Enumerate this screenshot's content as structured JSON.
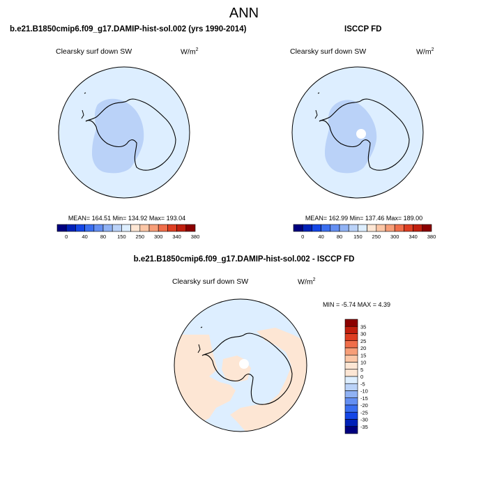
{
  "figure": {
    "title": "ANN"
  },
  "panels": {
    "model": {
      "title": "b.e21.B1850cmip6.f09_g17.DAMIP-hist-sol.002 (yrs 1990-2014)",
      "variable": "Clearsky surf down SW",
      "units": "W/m",
      "units_exp": "2",
      "stats": {
        "mean": "164.51",
        "min": "134.92",
        "max": "193.04"
      },
      "stats_text": "MEAN= 164.51  Min= 134.92  Max= 193.04"
    },
    "obs": {
      "title": "ISCCP FD",
      "variable": "Clearsky surf down SW",
      "units": "W/m",
      "units_exp": "2",
      "stats": {
        "mean": "162.99",
        "min": "137.46",
        "max": "189.00"
      },
      "stats_text": "MEAN= 162.99  Min= 137.46  Max= 189.00"
    },
    "diff": {
      "title": "b.e21.B1850cmip6.f09_g17.DAMIP-hist-sol.002 - ISCCP FD",
      "variable": "Clearsky surf down SW",
      "units": "W/m",
      "units_exp": "2",
      "stats": {
        "min": "-5.74",
        "max": "4.39"
      },
      "stats_text": "MIN =  -5.74 MAX =   4.39"
    }
  },
  "chart_data": [
    {
      "type": "heatmap",
      "name": "model",
      "projection": "south-polar-stereographic",
      "colorbar": {
        "orientation": "horizontal",
        "levels": [
          0,
          40,
          80,
          150,
          250,
          300,
          340,
          380
        ],
        "tick_labels": [
          "0",
          "40",
          "80",
          "150",
          "250",
          "300",
          "340",
          "380"
        ],
        "colors": [
          "#00007f",
          "#0021b8",
          "#1446e6",
          "#3a6ef0",
          "#648ff2",
          "#90b2f4",
          "#bad2f8",
          "#ddeeff",
          "#fde6d4",
          "#fbc6a6",
          "#f79e78",
          "#f06e4a",
          "#de3e22",
          "#c11f0e",
          "#8b0000"
        ]
      },
      "field": {
        "outer_ocean": "150-250",
        "antarctic_interior": "80-150"
      }
    },
    {
      "type": "heatmap",
      "name": "obs",
      "projection": "south-polar-stereographic",
      "colorbar": {
        "orientation": "horizontal",
        "levels": [
          0,
          40,
          80,
          150,
          250,
          300,
          340,
          380
        ],
        "tick_labels": [
          "0",
          "40",
          "80",
          "150",
          "250",
          "300",
          "340",
          "380"
        ],
        "colors": [
          "#00007f",
          "#0021b8",
          "#1446e6",
          "#3a6ef0",
          "#648ff2",
          "#90b2f4",
          "#bad2f8",
          "#ddeeff",
          "#fde6d4",
          "#fbc6a6",
          "#f79e78",
          "#f06e4a",
          "#de3e22",
          "#c11f0e",
          "#8b0000"
        ]
      },
      "field": {
        "outer_ocean": "150-250",
        "antarctic_interior": "80-150",
        "pole": "missing"
      }
    },
    {
      "type": "heatmap",
      "name": "difference",
      "projection": "south-polar-stereographic",
      "colorbar": {
        "orientation": "vertical",
        "levels": [
          35,
          30,
          25,
          20,
          15,
          10,
          5,
          0,
          -5,
          -10,
          -15,
          -20,
          -25,
          -30,
          -35
        ],
        "tick_labels": [
          "35",
          "30",
          "25",
          "20",
          "15",
          "10",
          "5",
          "0",
          "-5",
          "-10",
          "-15",
          "-20",
          "-25",
          "-30",
          "-35"
        ],
        "colors": [
          "#8b0000",
          "#c11f0e",
          "#de3e22",
          "#f06e4a",
          "#f79e78",
          "#fbc6a6",
          "#fde6d4",
          "#fde6d4",
          "#ddeeff",
          "#bad2f8",
          "#90b2f4",
          "#648ff2",
          "#3a6ef0",
          "#1446e6",
          "#0021b8",
          "#00007f"
        ]
      },
      "field": {
        "dominant": "-5 to 5"
      }
    }
  ]
}
